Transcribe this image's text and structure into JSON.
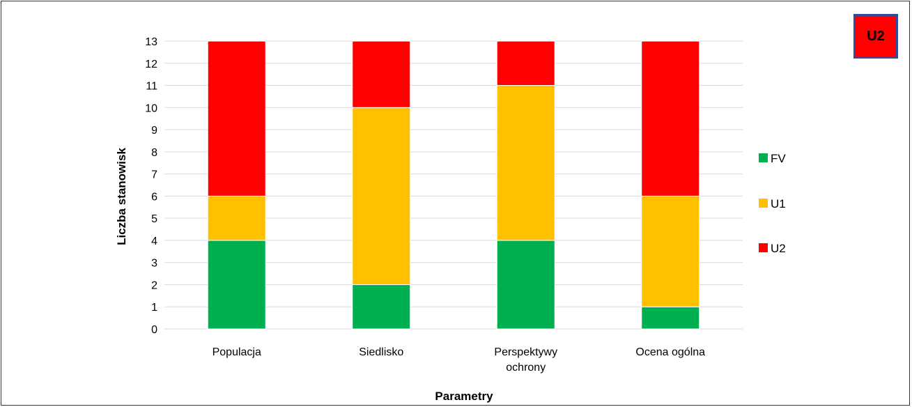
{
  "badge": {
    "label": "U2",
    "color": "#ff0000"
  },
  "chart_data": {
    "type": "bar",
    "stacked": true,
    "categories": [
      [
        "Populacja"
      ],
      [
        "Siedlisko"
      ],
      [
        "Perspektywy",
        "ochrony"
      ],
      [
        "Ocena ogólna"
      ]
    ],
    "series": [
      {
        "name": "FV",
        "color": "#00b050",
        "values": [
          4,
          2,
          4,
          1
        ]
      },
      {
        "name": "U1",
        "color": "#ffc000",
        "values": [
          2,
          8,
          7,
          5
        ]
      },
      {
        "name": "U2",
        "color": "#ff0000",
        "values": [
          7,
          3,
          2,
          7
        ]
      }
    ],
    "xlabel": "Parametry",
    "ylabel": "Liczba stanowisk",
    "ylim": [
      0,
      13
    ],
    "yticks": [
      0,
      1,
      2,
      3,
      4,
      5,
      6,
      7,
      8,
      9,
      10,
      11,
      12,
      13
    ],
    "grid": true,
    "legend_position": "right"
  }
}
